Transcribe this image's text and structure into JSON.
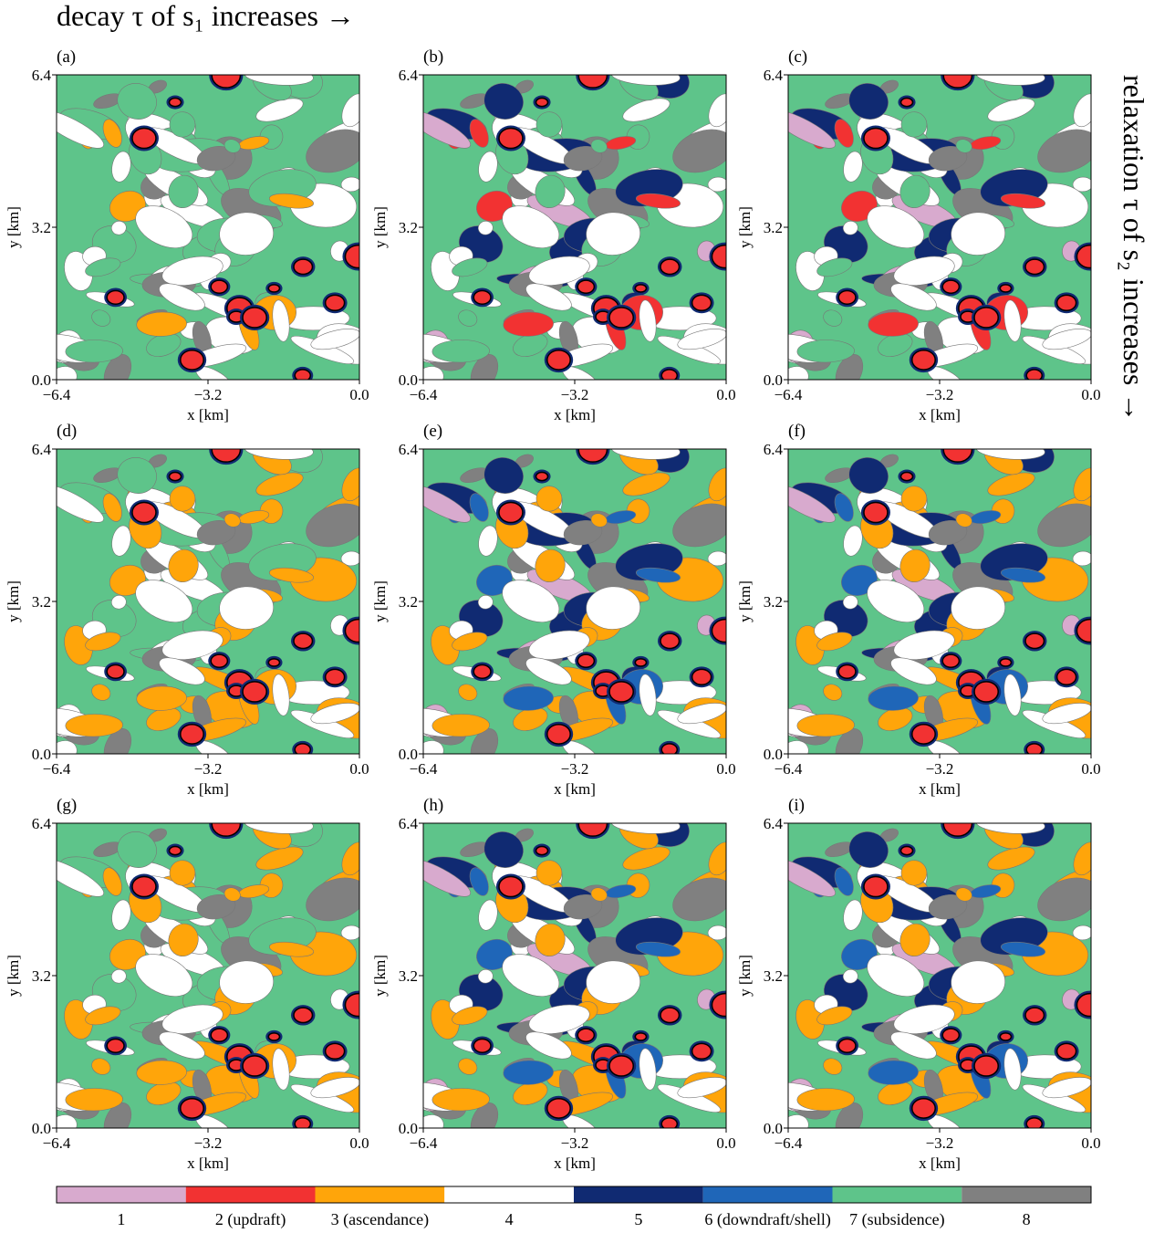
{
  "top_annotation": "decay τ of s₁ increases →",
  "right_annotation": "relaxation τ of s₂ increases →",
  "colorbar": {
    "labels": [
      "1",
      "2 (updraft)",
      "3 (ascendance)",
      "4",
      "5",
      "6 (downdraft/shell)",
      "7 (subsidence)",
      "8"
    ],
    "colors": [
      "#d8aace",
      "#f23232",
      "#ffa50a",
      "#ffffff",
      "#102a72",
      "#1f66b8",
      "#5ec48a",
      "#808080"
    ]
  },
  "chart_data": [
    {
      "type": "contourf",
      "panel": "(a)",
      "xlabel": "x [km]",
      "ylabel": "y [km]",
      "xlim": [
        -6.4,
        0
      ],
      "ylim": [
        0,
        6.4
      ],
      "xticks": [
        {
          "value": -6.4,
          "label": "−6.4"
        },
        {
          "value": -3.2,
          "label": "−3.2"
        },
        {
          "value": 0,
          "label": "0.0"
        }
      ],
      "yticks": [
        {
          "value": 0,
          "label": "0.0"
        },
        3.2,
        6.4
      ]
    },
    {
      "type": "contourf",
      "panel": "(b)",
      "xlabel": "x [km]",
      "ylabel": "y [km]",
      "xlim": [
        -6.4,
        0
      ],
      "ylim": [
        0,
        6.4
      ],
      "xticks": [
        {
          "value": -6.4,
          "label": "−6.4"
        },
        {
          "value": -3.2,
          "label": "−3.2"
        },
        {
          "value": 0,
          "label": "0.0"
        }
      ],
      "yticks": [
        {
          "value": 0,
          "label": "0.0"
        },
        3.2,
        6.4
      ]
    },
    {
      "type": "contourf",
      "panel": "(c)",
      "xlabel": "x [km]",
      "ylabel": "y [km]",
      "xlim": [
        -6.4,
        0
      ],
      "ylim": [
        0,
        6.4
      ],
      "xticks": [
        {
          "value": -6.4,
          "label": "−6.4"
        },
        {
          "value": -3.2,
          "label": "−3.2"
        },
        {
          "value": 0,
          "label": "0.0"
        }
      ],
      "yticks": [
        {
          "value": 0,
          "label": "0.0"
        },
        3.2,
        6.4
      ]
    },
    {
      "type": "contourf",
      "panel": "(d)",
      "xlabel": "x [km]",
      "ylabel": "y [km]",
      "xlim": [
        -6.4,
        0
      ],
      "ylim": [
        0,
        6.4
      ],
      "xticks": [
        {
          "value": -6.4,
          "label": "−6.4"
        },
        {
          "value": -3.2,
          "label": "−3.2"
        },
        {
          "value": 0,
          "label": "0.0"
        }
      ],
      "yticks": [
        {
          "value": 0,
          "label": "0.0"
        },
        3.2,
        6.4
      ]
    },
    {
      "type": "contourf",
      "panel": "(e)",
      "xlabel": "x [km]",
      "ylabel": "y [km]",
      "xlim": [
        -6.4,
        0
      ],
      "ylim": [
        0,
        6.4
      ],
      "xticks": [
        {
          "value": -6.4,
          "label": "−6.4"
        },
        {
          "value": -3.2,
          "label": "−3.2"
        },
        {
          "value": 0,
          "label": "0.0"
        }
      ],
      "yticks": [
        {
          "value": 0,
          "label": "0.0"
        },
        3.2,
        6.4
      ]
    },
    {
      "type": "contourf",
      "panel": "(f)",
      "xlabel": "x [km]",
      "ylabel": "y [km]",
      "xlim": [
        -6.4,
        0
      ],
      "ylim": [
        0,
        6.4
      ],
      "xticks": [
        {
          "value": -6.4,
          "label": "−6.4"
        },
        {
          "value": -3.2,
          "label": "−3.2"
        },
        {
          "value": 0,
          "label": "0.0"
        }
      ],
      "yticks": [
        {
          "value": 0,
          "label": "0.0"
        },
        3.2,
        6.4
      ]
    },
    {
      "type": "contourf",
      "panel": "(g)",
      "xlabel": "x [km]",
      "ylabel": "y [km]",
      "xlim": [
        -6.4,
        0
      ],
      "ylim": [
        0,
        6.4
      ],
      "xticks": [
        {
          "value": -6.4,
          "label": "−6.4"
        },
        {
          "value": -3.2,
          "label": "−3.2"
        },
        {
          "value": 0,
          "label": "0.0"
        }
      ],
      "yticks": [
        {
          "value": 0,
          "label": "0.0"
        },
        3.2,
        6.4
      ]
    },
    {
      "type": "contourf",
      "panel": "(h)",
      "xlabel": "x [km]",
      "ylabel": "y [km]",
      "xlim": [
        -6.4,
        0
      ],
      "ylim": [
        0,
        6.4
      ],
      "xticks": [
        {
          "value": -6.4,
          "label": "−6.4"
        },
        {
          "value": -3.2,
          "label": "−3.2"
        },
        {
          "value": 0,
          "label": "0.0"
        }
      ],
      "yticks": [
        {
          "value": 0,
          "label": "0.0"
        },
        3.2,
        6.4
      ]
    },
    {
      "type": "contourf",
      "panel": "(i)",
      "xlabel": "x [km]",
      "ylabel": "y [km]",
      "xlim": [
        -6.4,
        0
      ],
      "ylim": [
        0,
        6.4
      ],
      "xticks": [
        {
          "value": -6.4,
          "label": "−6.4"
        },
        {
          "value": -3.2,
          "label": "−3.2"
        },
        {
          "value": 0,
          "label": "0.0"
        }
      ],
      "yticks": [
        {
          "value": 0,
          "label": "0.0"
        },
        3.2,
        6.4
      ]
    }
  ]
}
